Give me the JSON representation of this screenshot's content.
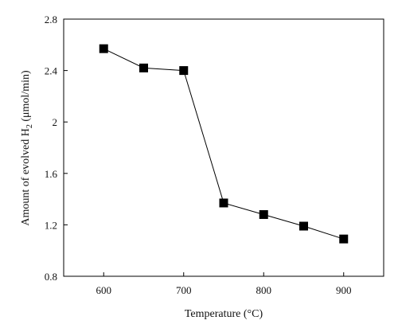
{
  "chart_data": {
    "type": "line",
    "title": "",
    "xlabel": "Temperature (°C)",
    "ylabel_main": "Amount of evolved H",
    "ylabel_sub": "2",
    "ylabel_tail": " (μmol/min)",
    "xlim": [
      550,
      950
    ],
    "ylim": [
      0.8,
      2.8
    ],
    "x_ticks": [
      600,
      700,
      800,
      900
    ],
    "x_tick_labels": [
      "600",
      "700",
      "800",
      "900"
    ],
    "y_ticks": [
      0.8,
      1.2,
      1.6,
      2.0,
      2.4,
      2.8
    ],
    "y_tick_labels": [
      "0.8",
      "1.2",
      "1.6",
      "2",
      "2.4",
      "2.8"
    ],
    "grid": false,
    "series": [
      {
        "marker": "square",
        "color": "#000000",
        "x": [
          600,
          650,
          700,
          750,
          800,
          850,
          900
        ],
        "y": [
          2.57,
          2.42,
          2.4,
          1.37,
          1.28,
          1.19,
          1.09
        ]
      }
    ]
  }
}
